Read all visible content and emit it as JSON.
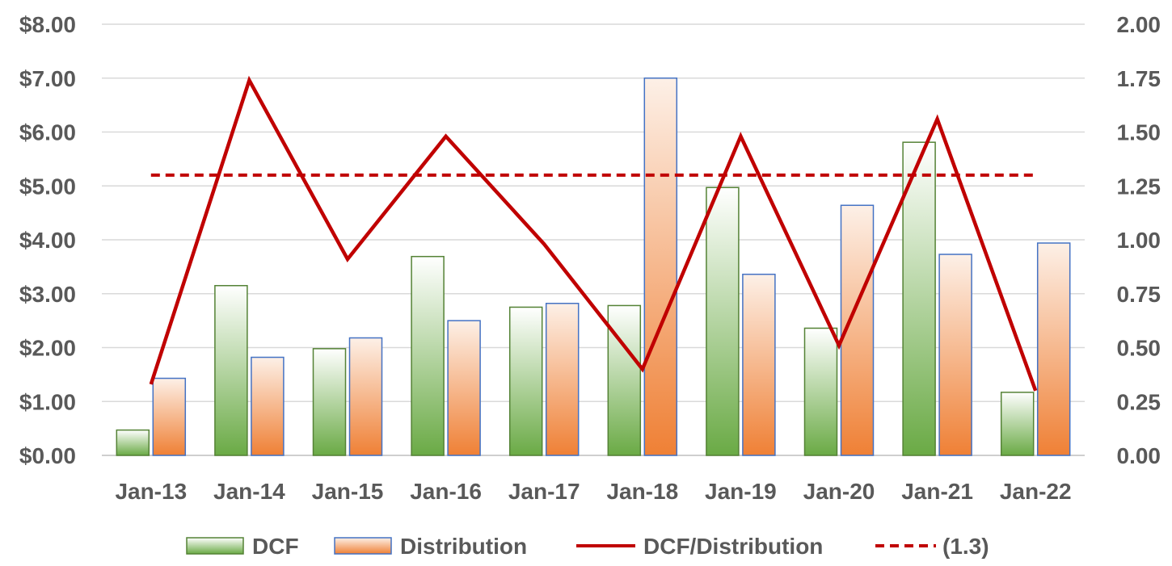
{
  "chart_data": {
    "type": "bar",
    "categories": [
      "Jan-13",
      "Jan-14",
      "Jan-15",
      "Jan-16",
      "Jan-17",
      "Jan-18",
      "Jan-19",
      "Jan-20",
      "Jan-21",
      "Jan-22"
    ],
    "series": [
      {
        "name": "DCF",
        "type": "bar",
        "axis": "left",
        "color": "#70ad47",
        "values": [
          0.47,
          3.15,
          1.98,
          3.69,
          2.75,
          2.78,
          4.97,
          2.36,
          5.81,
          1.17
        ]
      },
      {
        "name": "Distribution",
        "type": "bar",
        "axis": "left",
        "color": "#ed7d31",
        "values": [
          1.43,
          1.82,
          2.18,
          2.5,
          2.82,
          7.0,
          3.36,
          4.64,
          3.73,
          3.94
        ]
      },
      {
        "name": "DCF/Distribution",
        "type": "line",
        "axis": "right",
        "color": "#c00000",
        "values": [
          0.33,
          1.74,
          0.91,
          1.48,
          0.98,
          0.4,
          1.48,
          0.51,
          1.56,
          0.3
        ]
      },
      {
        "name": "(1.3)",
        "type": "line",
        "axis": "right",
        "dashed": true,
        "color": "#c00000",
        "values": [
          1.3,
          1.3,
          1.3,
          1.3,
          1.3,
          1.3,
          1.3,
          1.3,
          1.3,
          1.3
        ]
      }
    ],
    "left_axis": {
      "min": 0,
      "max": 8,
      "step": 1,
      "tick_labels": [
        "$0.00",
        "$1.00",
        "$2.00",
        "$3.00",
        "$4.00",
        "$5.00",
        "$6.00",
        "$7.00",
        "$8.00"
      ]
    },
    "right_axis": {
      "min": 0,
      "max": 2,
      "step": 0.25,
      "tick_labels": [
        "0.00",
        "0.25",
        "0.50",
        "0.75",
        "1.00",
        "1.25",
        "1.50",
        "1.75",
        "2.00"
      ]
    },
    "grid": true,
    "legend_position": "bottom"
  },
  "legend": {
    "dcf": "DCF",
    "distribution": "Distribution",
    "ratio": "DCF/Distribution",
    "threshold": "(1.3)"
  }
}
